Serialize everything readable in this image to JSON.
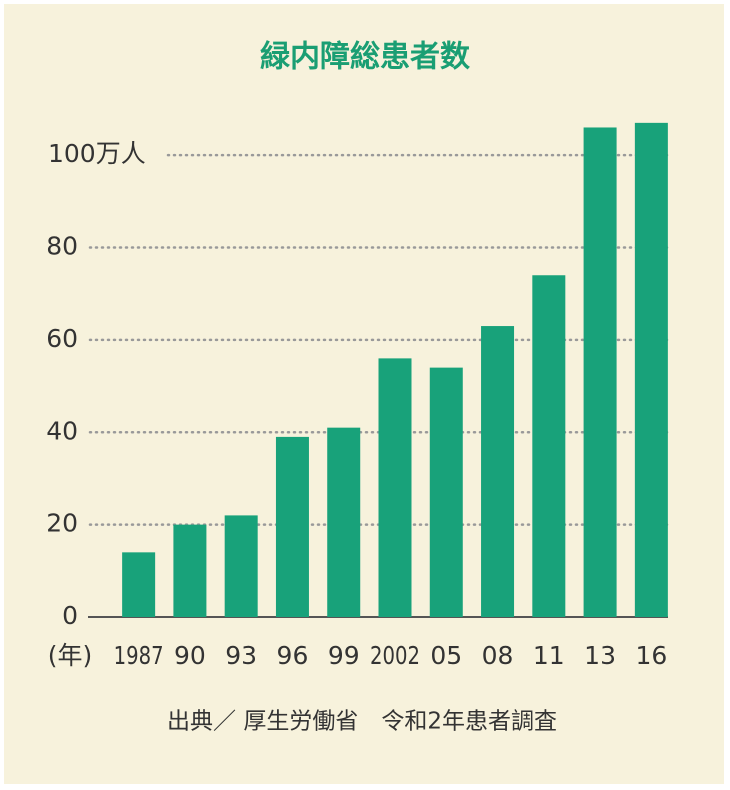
{
  "chart_data": {
    "type": "bar",
    "title": "緑内障総患者数",
    "categories": [
      "1987",
      "90",
      "93",
      "96",
      "99",
      "2002",
      "05",
      "08",
      "11",
      "13",
      "16"
    ],
    "values": [
      14,
      20,
      22,
      39,
      41,
      56,
      54,
      63,
      74,
      106,
      107
    ],
    "color": "#18a27a",
    "ylim": [
      0,
      110
    ],
    "yticks": [
      0,
      20,
      40,
      60,
      80,
      {
        "value": 100,
        "label": "100万人"
      }
    ],
    "grid": true,
    "x_label": "(年)",
    "source": "出典／ 厚生労働省　令和2年患者調査"
  }
}
